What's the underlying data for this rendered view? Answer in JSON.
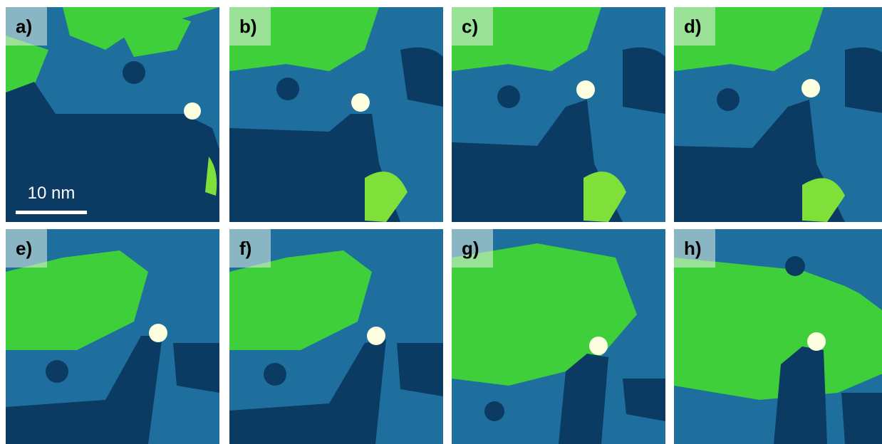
{
  "panels": [
    {
      "id": "a",
      "label": "a)"
    },
    {
      "id": "b",
      "label": "b)"
    },
    {
      "id": "c",
      "label": "c)"
    },
    {
      "id": "d",
      "label": "d)"
    },
    {
      "id": "e",
      "label": "e)"
    },
    {
      "id": "f",
      "label": "f)"
    },
    {
      "id": "g",
      "label": "g)"
    },
    {
      "id": "h",
      "label": "h)"
    }
  ],
  "scale_bar": {
    "label": "10 nm"
  },
  "colors": {
    "background_dark": "#0b3a63",
    "mid_blue": "#1f6f9e",
    "green": "#3fcf3a",
    "bright_green": "#b8f542",
    "particle": "#fdfde0"
  }
}
